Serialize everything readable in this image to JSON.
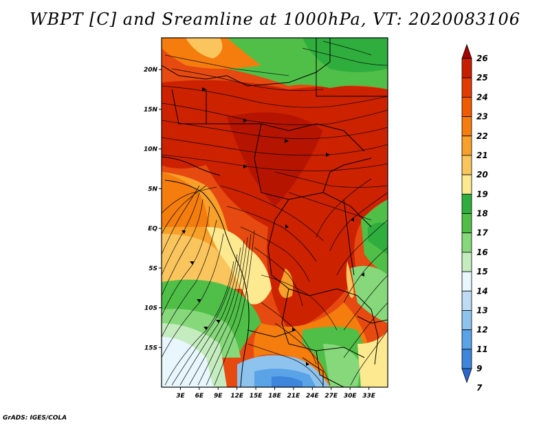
{
  "title": "WBPT [C] and Sreamline at 1000hPa, VT: 2020083106",
  "credit": "GrADS: IGES/COLA",
  "chart_data": {
    "type": "heatmap",
    "variable": "WBPT [C]",
    "overlay": "streamlines",
    "level": "1000hPa",
    "valid_time": "2020083106",
    "lon_range": [
      0,
      36
    ],
    "lat_range": [
      -20,
      24
    ],
    "x_ticks": [
      "3E",
      "6E",
      "9E",
      "12E",
      "15E",
      "18E",
      "21E",
      "24E",
      "27E",
      "30E",
      "33E"
    ],
    "x_tick_values": [
      3,
      6,
      9,
      12,
      15,
      18,
      21,
      24,
      27,
      30,
      33
    ],
    "y_ticks": [
      "20N",
      "15N",
      "10N",
      "5N",
      "EQ",
      "5S",
      "10S",
      "15S"
    ],
    "y_tick_values": [
      20,
      15,
      10,
      5,
      0,
      -5,
      -10,
      -15
    ],
    "colorbar": {
      "levels": [
        "26",
        "25",
        "24",
        "23",
        "22",
        "21",
        "20",
        "19",
        "18",
        "17",
        "16",
        "15",
        "14",
        "13",
        "12",
        "11",
        "9",
        "7"
      ],
      "colors": [
        "#a50000",
        "#c81e00",
        "#e33a00",
        "#f05a00",
        "#f47d0e",
        "#f7a02a",
        "#fbc55e",
        "#fde98f",
        "#2fae3e",
        "#4fbf48",
        "#86d87b",
        "#c5ecbf",
        "#e8f6fd",
        "#bddcf3",
        "#8ec3ee",
        "#5aa3e6",
        "#3d86dc",
        "#2a6ad0"
      ]
    }
  }
}
